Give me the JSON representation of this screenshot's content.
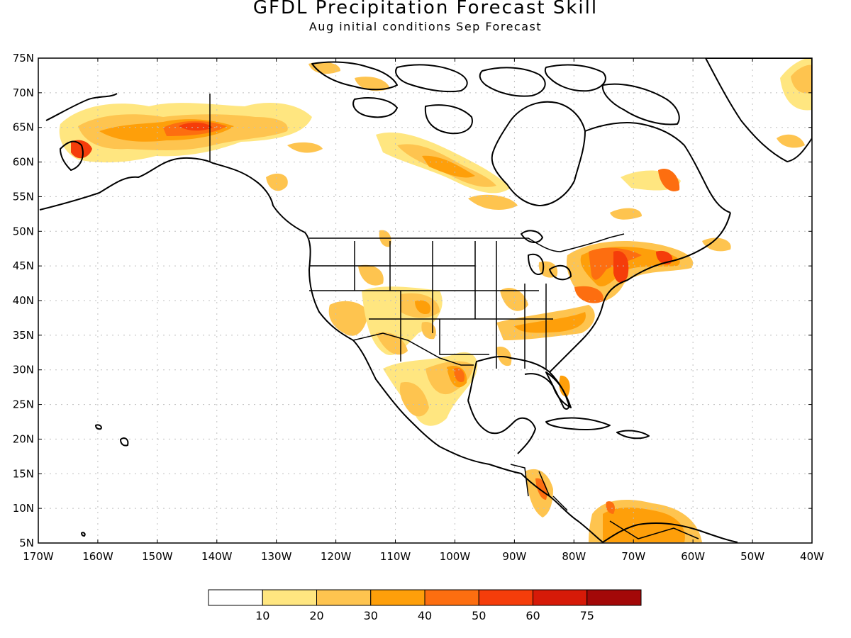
{
  "title": "GFDL Precipitation Forecast Skill",
  "subtitle": "Aug initial conditions  Sep Forecast",
  "lat_labels": [
    "75N",
    "70N",
    "65N",
    "60N",
    "55N",
    "50N",
    "45N",
    "40N",
    "35N",
    "30N",
    "25N",
    "20N",
    "15N",
    "10N",
    "5N"
  ],
  "lon_labels": [
    "170W",
    "160W",
    "150W",
    "140W",
    "130W",
    "120W",
    "110W",
    "100W",
    "90W",
    "80W",
    "70W",
    "60W",
    "50W",
    "40W"
  ],
  "legend": {
    "colors": [
      "#ffffff",
      "#ffe680",
      "#fec44f",
      "#fe9f0a",
      "#fd6e10",
      "#f53d0a",
      "#d61a08",
      "#a30808"
    ],
    "labels": [
      "10",
      "20",
      "30",
      "40",
      "50",
      "60",
      "75"
    ]
  },
  "colors": {
    "land_outline": "#000000",
    "grid": "#bfbfbf",
    "frame": "#000000"
  }
}
